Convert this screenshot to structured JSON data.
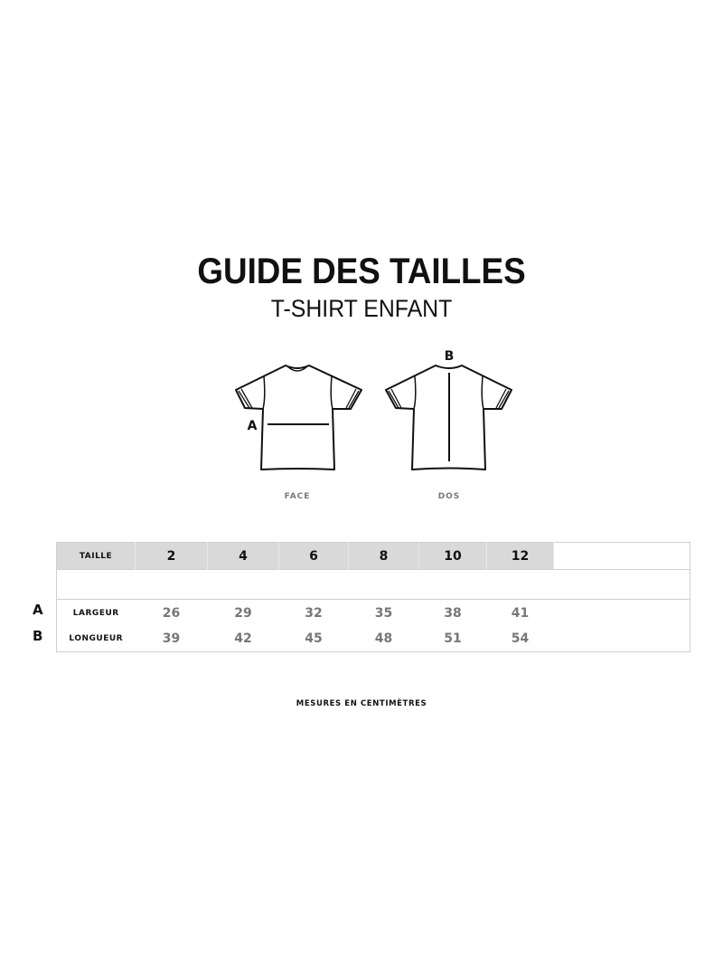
{
  "header": {
    "title": "GUIDE DES TAILLES",
    "subtitle": "T-SHIRT ENFANT"
  },
  "diagram": {
    "front": {
      "label": "FACE",
      "marker": "A"
    },
    "back": {
      "label": "DOS",
      "marker": "B"
    }
  },
  "table": {
    "header_label": "TAILLE",
    "sizes": [
      "2",
      "4",
      "6",
      "8",
      "10",
      "12"
    ],
    "rows": [
      {
        "letter": "A",
        "label": "LARGEUR",
        "values": [
          "26",
          "29",
          "32",
          "35",
          "38",
          "41"
        ]
      },
      {
        "letter": "B",
        "label": "LONGUEUR",
        "values": [
          "39",
          "42",
          "45",
          "48",
          "51",
          "54"
        ]
      }
    ]
  },
  "footnote": "MESURES EN CENTIMÈTRES"
}
